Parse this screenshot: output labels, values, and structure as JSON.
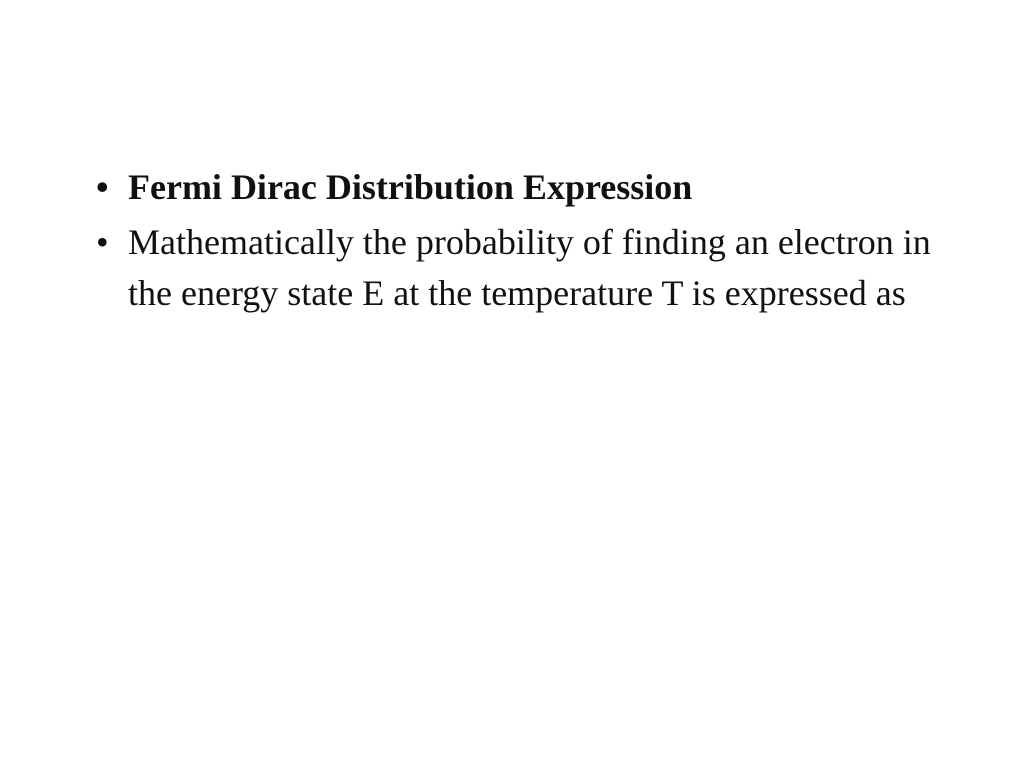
{
  "slide": {
    "background_color": "#ffffff",
    "text_color": "#111111",
    "font_family": "Palatino Linotype",
    "title_fontsize": 36,
    "body_fontsize": 36,
    "title_weight": 700,
    "body_weight": 400,
    "bullets": [
      {
        "text": "Fermi Dirac Distribution Expression",
        "bold": true
      },
      {
        "text": "Mathematically the probability of finding an electron in the energy state E at the temperature T is expressed as",
        "bold": false
      }
    ]
  }
}
